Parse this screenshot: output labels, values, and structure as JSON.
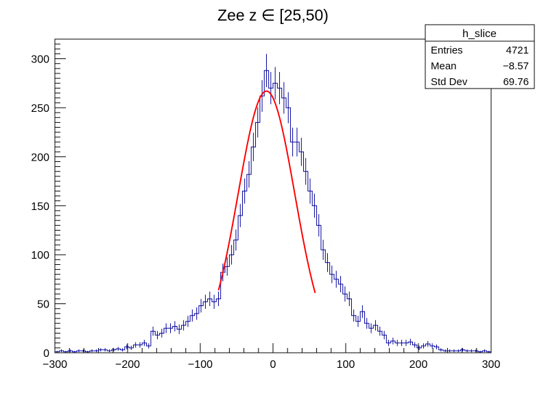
{
  "chart_data": {
    "type": "histogram",
    "title": "Zee z ∈ [25,50)",
    "xlabel": "",
    "ylabel": "",
    "xlim": [
      -300,
      300
    ],
    "ylim": [
      0,
      320
    ],
    "x_ticks": [
      -300,
      -200,
      -100,
      0,
      100,
      200,
      300
    ],
    "x_tick_labels": [
      "−300",
      "−200",
      "−100",
      "0",
      "100",
      "200",
      "300"
    ],
    "y_ticks": [
      0,
      50,
      100,
      150,
      200,
      250,
      300
    ],
    "y_tick_labels": [
      "0",
      "50",
      "100",
      "150",
      "200",
      "250",
      "300"
    ],
    "grid": false,
    "bin_width": 6,
    "series": [
      {
        "name": "h_slice",
        "style": "step-with-error-bars",
        "color": "#000099",
        "x_centers": [
          -297,
          -291,
          -285,
          -279,
          -273,
          -267,
          -261,
          -255,
          -249,
          -243,
          -237,
          -231,
          -225,
          -219,
          -213,
          -207,
          -201,
          -195,
          -189,
          -183,
          -177,
          -171,
          -165,
          -159,
          -153,
          -147,
          -141,
          -135,
          -129,
          -123,
          -117,
          -111,
          -105,
          -99,
          -93,
          -87,
          -81,
          -75,
          -69,
          -63,
          -57,
          -51,
          -45,
          -39,
          -33,
          -27,
          -21,
          -15,
          -9,
          -3,
          3,
          9,
          15,
          21,
          27,
          33,
          39,
          45,
          51,
          57,
          63,
          69,
          75,
          81,
          87,
          93,
          99,
          105,
          111,
          117,
          123,
          129,
          135,
          141,
          147,
          153,
          159,
          165,
          171,
          177,
          183,
          189,
          195,
          201,
          207,
          213,
          219,
          225,
          231,
          237,
          243,
          249,
          255,
          261,
          267,
          273,
          279,
          285,
          291,
          297
        ],
        "values": [
          1,
          2,
          1,
          2,
          1,
          2,
          2,
          1,
          2,
          2,
          3,
          3,
          2,
          3,
          4,
          3,
          6,
          5,
          8,
          8,
          10,
          7,
          22,
          18,
          20,
          25,
          25,
          27,
          24,
          28,
          32,
          38,
          40,
          48,
          52,
          55,
          52,
          55,
          82,
          88,
          100,
          115,
          140,
          165,
          182,
          210,
          235,
          262,
          288,
          270,
          275,
          270,
          260,
          250,
          215,
          215,
          205,
          185,
          165,
          150,
          130,
          105,
          92,
          80,
          75,
          70,
          60,
          55,
          38,
          32,
          42,
          30,
          25,
          28,
          22,
          18,
          10,
          12,
          10,
          10,
          10,
          11,
          8,
          5,
          7,
          9,
          7,
          6,
          3,
          2,
          2,
          2,
          2,
          3,
          2,
          2,
          2,
          1,
          2,
          1
        ]
      },
      {
        "name": "gaussian fit",
        "style": "line",
        "color": "#ff0000",
        "x_range": [
          -75,
          58
        ],
        "mean": -9,
        "sigma": 39,
        "amplitude": 267
      }
    ],
    "stats_box": {
      "title": "h_slice",
      "position": "top-right",
      "rows": [
        {
          "label": "Entries",
          "value": "4721"
        },
        {
          "label": "Mean",
          "value": "−8.57"
        },
        {
          "label": "Std Dev",
          "value": "69.76"
        }
      ]
    }
  }
}
